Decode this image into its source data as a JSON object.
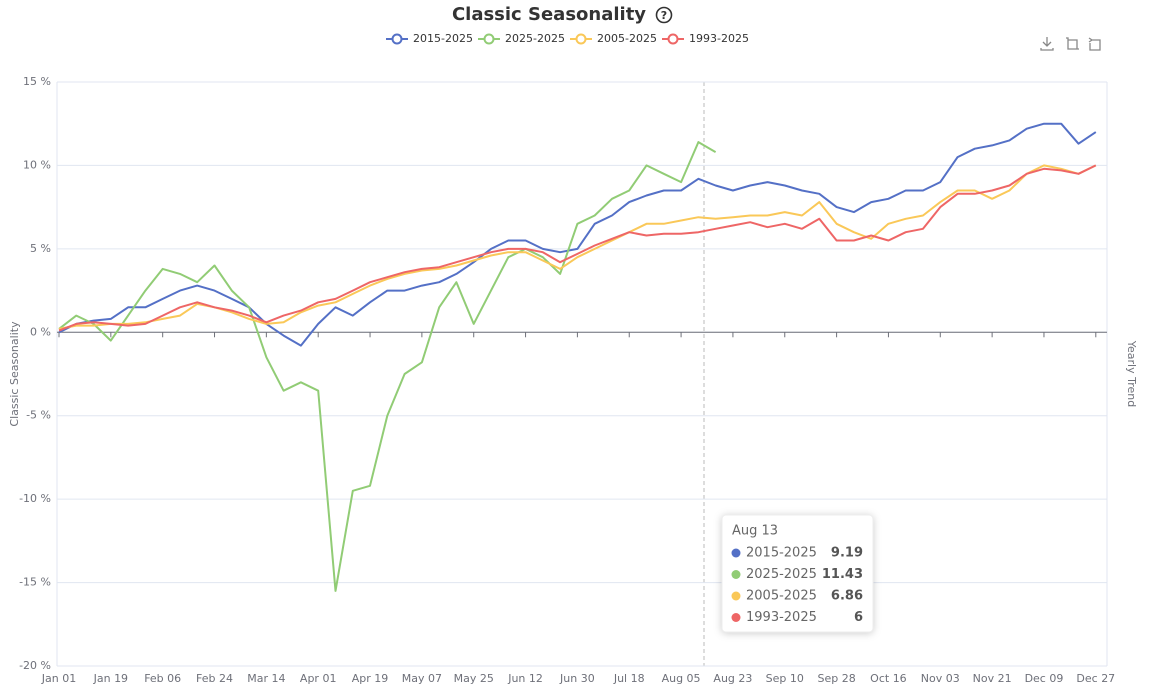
{
  "chart_data": {
    "type": "line",
    "title": "Classic Seasonality",
    "y_axis_label": "Classic Seasonality",
    "y2_axis_label": "Yearly Trend",
    "categories": [
      "Jan 01",
      null,
      null,
      "Jan 19",
      null,
      null,
      "Feb 06",
      null,
      null,
      "Feb 24",
      null,
      null,
      "Mar 14",
      null,
      null,
      "Apr 01",
      null,
      null,
      "Apr 19",
      null,
      null,
      "May 07",
      null,
      null,
      "May 25",
      null,
      null,
      "Jun 12",
      null,
      null,
      "Jun 30",
      null,
      null,
      "Jul 18",
      null,
      null,
      "Aug 05",
      null,
      null,
      "Aug 23",
      null,
      null,
      "Sep 10",
      null,
      null,
      "Sep 28",
      null,
      null,
      "Oct 16",
      null,
      null,
      "Nov 03",
      null,
      null,
      "Nov 21",
      null,
      null,
      "Dec 09",
      null,
      null,
      "Dec 27"
    ],
    "series": [
      {
        "name": "2015-2025",
        "color": "#5470c6",
        "values": [
          0,
          0.5,
          0.7,
          0.8,
          1.5,
          1.5,
          2.0,
          2.5,
          2.8,
          2.5,
          2.0,
          1.5,
          0.5,
          -0.2,
          -0.8,
          0.5,
          1.5,
          1.0,
          1.8,
          2.5,
          2.5,
          2.8,
          3.0,
          3.5,
          4.2,
          5.0,
          5.5,
          5.5,
          5.0,
          4.8,
          5.0,
          6.5,
          7.0,
          7.8,
          8.2,
          8.5,
          8.5,
          9.2,
          8.8,
          8.5,
          8.8,
          9.0,
          8.8,
          8.5,
          8.3,
          7.5,
          7.2,
          7.8,
          8.0,
          8.5,
          8.5,
          9.0,
          10.5,
          11.0,
          11.2,
          11.5,
          12.2,
          12.5,
          12.5,
          11.3,
          12.0
        ]
      },
      {
        "name": "2025-2025",
        "color": "#91cc75",
        "values": [
          0.2,
          1.0,
          0.5,
          -0.5,
          1.0,
          2.5,
          3.8,
          3.5,
          3.0,
          4.0,
          2.5,
          1.5,
          -1.5,
          -3.5,
          -3.0,
          -3.5,
          -15.5,
          -9.5,
          -9.2,
          -5.0,
          -2.5,
          -1.8,
          1.5,
          3.0,
          0.5,
          2.5,
          4.5,
          5.0,
          4.5,
          3.5,
          6.5,
          7.0,
          8.0,
          8.5,
          10.0,
          9.5,
          9.0,
          11.4,
          10.8,
          null,
          null,
          null,
          null,
          null,
          null,
          null,
          null,
          null,
          null,
          null,
          null,
          null,
          null,
          null,
          null,
          null,
          null,
          null,
          null,
          null,
          null
        ]
      },
      {
        "name": "2005-2025",
        "color": "#fac858",
        "values": [
          0.2,
          0.4,
          0.4,
          0.5,
          0.5,
          0.6,
          0.8,
          1.0,
          1.7,
          1.5,
          1.2,
          0.8,
          0.5,
          0.6,
          1.2,
          1.6,
          1.8,
          2.3,
          2.8,
          3.2,
          3.5,
          3.7,
          3.8,
          4.0,
          4.3,
          4.6,
          4.8,
          4.8,
          4.3,
          3.8,
          4.5,
          5.0,
          5.5,
          6.0,
          6.5,
          6.5,
          6.7,
          6.9,
          6.8,
          6.9,
          7.0,
          7.0,
          7.2,
          7.0,
          7.8,
          6.5,
          6.0,
          5.6,
          6.5,
          6.8,
          7.0,
          7.8,
          8.5,
          8.5,
          8.0,
          8.5,
          9.5,
          10.0,
          9.8,
          9.5,
          10.0
        ]
      },
      {
        "name": "1993-2025",
        "color": "#ee6666",
        "values": [
          0.1,
          0.5,
          0.6,
          0.5,
          0.4,
          0.5,
          1.0,
          1.5,
          1.8,
          1.5,
          1.3,
          1.0,
          0.6,
          1.0,
          1.3,
          1.8,
          2.0,
          2.5,
          3.0,
          3.3,
          3.6,
          3.8,
          3.9,
          4.2,
          4.5,
          4.8,
          5.0,
          5.0,
          4.8,
          4.2,
          4.7,
          5.2,
          5.6,
          6.0,
          5.8,
          5.9,
          5.9,
          6.0,
          6.2,
          6.4,
          6.6,
          6.3,
          6.5,
          6.2,
          6.8,
          5.5,
          5.5,
          5.8,
          5.5,
          6.0,
          6.2,
          7.5,
          8.3,
          8.3,
          8.5,
          8.8,
          9.5,
          9.8,
          9.7,
          9.5,
          10.0
        ]
      }
    ],
    "ylim": [
      -20,
      15
    ],
    "yticks": [
      {
        "value": -20,
        "label": "-20 %"
      },
      {
        "value": -15,
        "label": "-15 %"
      },
      {
        "value": -10,
        "label": "-10 %"
      },
      {
        "value": -5,
        "label": "-5 %"
      },
      {
        "value": 0,
        "label": "0 %"
      },
      {
        "value": 5,
        "label": "5 %"
      },
      {
        "value": 10,
        "label": "10 %"
      },
      {
        "value": 15,
        "label": "15 %"
      }
    ],
    "grid": true,
    "legend": "top",
    "tooltip": {
      "date": "Aug 13",
      "items": [
        {
          "name": "2015-2025",
          "value": 9.19
        },
        {
          "name": "2025-2025",
          "value": 11.43
        },
        {
          "name": "2005-2025",
          "value": 6.86
        },
        {
          "name": "1993-2025",
          "value": 6
        }
      ]
    }
  }
}
